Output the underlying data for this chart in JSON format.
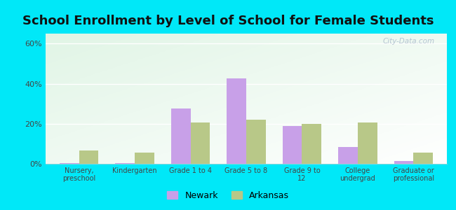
{
  "title": "School Enrollment by Level of School for Female Students",
  "categories": [
    "Nursery,\npreschool",
    "Kindergarten",
    "Grade 1 to 4",
    "Grade 5 to 8",
    "Grade 9 to\n12",
    "College\nundergrad",
    "Graduate or\nprofessional"
  ],
  "newark": [
    0.5,
    0.5,
    27.5,
    42.5,
    19.0,
    8.5,
    1.5
  ],
  "arkansas": [
    6.5,
    5.5,
    20.5,
    22.0,
    20.0,
    20.5,
    5.5
  ],
  "newark_color": "#c8a0e8",
  "arkansas_color": "#b8c888",
  "background_outer": "#00e8f8",
  "plot_bg_top_left": "#d0ead8",
  "plot_bg_right": "#f0faf8",
  "ylim": [
    0,
    65
  ],
  "yticks": [
    0,
    20,
    40,
    60
  ],
  "ytick_labels": [
    "0%",
    "20%",
    "40%",
    "60%"
  ],
  "title_fontsize": 13,
  "legend_labels": [
    "Newark",
    "Arkansas"
  ],
  "bar_width": 0.35,
  "watermark": "City-Data.com"
}
